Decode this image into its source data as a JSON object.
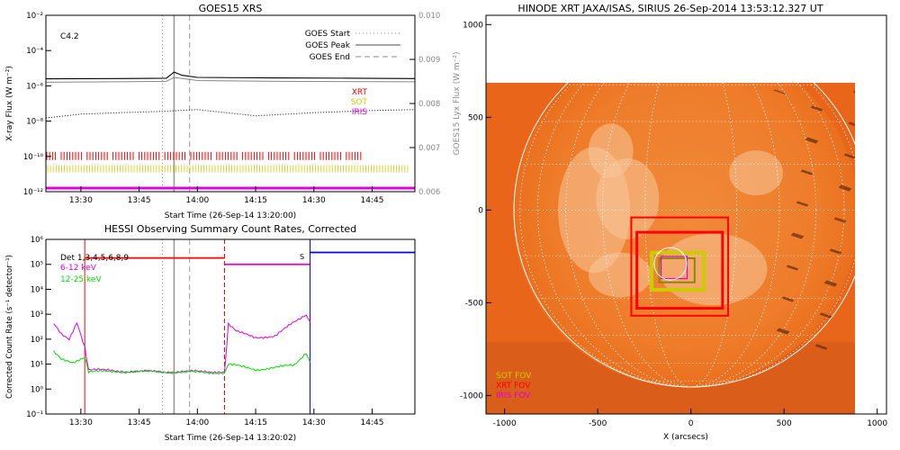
{
  "chart_data": [
    {
      "type": "line",
      "title": "GOES15 XRS",
      "xlabel": "Start Time (26-Sep-14 13:20:00)",
      "ylabel": "X-ray Flux (W m⁻²)",
      "ylabel_right": "GOES15 Lyx Flux (W m⁻²)",
      "flare_class": "C4.2",
      "x_ticks": [
        "13:30",
        "13:45",
        "14:00",
        "14:15",
        "14:30",
        "14:45"
      ],
      "x_range": [
        "13:21",
        "14:56"
      ],
      "y_scale": "log",
      "ylim": [
        "1e-12",
        "1e-2"
      ],
      "y_ticks": [
        "10⁻¹²",
        "10⁻¹⁰",
        "10⁻⁸",
        "10⁻⁶",
        "10⁻⁴",
        "10⁻²"
      ],
      "y2_ticks": [
        "0.006",
        "0.007",
        "0.008",
        "0.009",
        "0.010"
      ],
      "ylim_right": [
        0.006,
        0.01
      ],
      "legend": [
        "GOES Start",
        "GOES Peak",
        "GOES End"
      ],
      "legend_placement": "top-right",
      "instruments": [
        "XRT",
        "SOT",
        "IRIS"
      ],
      "goes_start": "13:51",
      "goes_peak": "13:54",
      "goes_end": "13:58",
      "series": [
        {
          "name": "",
          "style": "solid black",
          "x": [
            "13:21",
            "13:40",
            "13:52",
            "13:54",
            "13:56",
            "14:00",
            "14:20",
            "14:40",
            "14:56"
          ],
          "y": [
            "2.5e-6",
            "2.6e-6",
            "2.7e-6",
            "6e-6",
            "4e-6",
            "3e-6",
            "2.8e-6",
            "2.7e-6",
            "2.6e-6"
          ]
        },
        {
          "name": "",
          "style": "solid gray",
          "x": [
            "13:21",
            "13:40",
            "13:52",
            "13:54",
            "14:00",
            "14:20",
            "14:56"
          ],
          "y": [
            "1.6e-6",
            "1.7e-6",
            "1.8e-6",
            "3e-6",
            "2e-6",
            "1.8e-6",
            "1.7e-6"
          ]
        },
        {
          "name": "",
          "style": "dotted black",
          "x": [
            "13:21",
            "13:30",
            "13:40",
            "13:50",
            "14:00",
            "14:15",
            "14:30",
            "14:45",
            "14:56"
          ],
          "y": [
            "1.5e-8",
            "2.5e-8",
            "3e-8",
            "3.5e-8",
            "4.5e-8",
            "2e-8",
            "3e-8",
            "4e-8",
            "4.5e-8"
          ]
        }
      ]
    },
    {
      "type": "line",
      "title": "HESSI Observing Summary Count Rates, Corrected",
      "xlabel": "Start Time (26-Sep-14 13:20:02)",
      "ylabel": "Corrected Count Rate (s⁻¹ detector⁻¹)",
      "x_ticks": [
        "13:30",
        "13:45",
        "14:00",
        "14:15",
        "14:30",
        "14:45"
      ],
      "x_range": [
        "13:21",
        "14:56"
      ],
      "y_scale": "log",
      "ylim": [
        "1e-1",
        "1e6"
      ],
      "y_ticks": [
        "10⁻¹",
        "10⁰",
        "10¹",
        "10²",
        "10³",
        "10⁴",
        "10⁵",
        "10⁶"
      ],
      "legend_title": "Det 1,3,4,5,6,8,9",
      "s_marker": "S",
      "series": [
        {
          "name": "6-12 keV",
          "color": "#e000e0",
          "x": [
            "13:23",
            "13:25",
            "13:27",
            "13:29",
            "13:31",
            "13:32",
            "13:45",
            "14:07",
            "14:08",
            "14:10",
            "14:15",
            "14:20",
            "14:25",
            "14:28",
            "14:29"
          ],
          "y": [
            400,
            150,
            100,
            500,
            50,
            6,
            5,
            5,
            400,
            200,
            120,
            130,
            500,
            1000,
            500
          ]
        },
        {
          "name": "12-25 keV",
          "color": "#00e000",
          "x": [
            "13:23",
            "13:25",
            "13:28",
            "13:31",
            "13:32",
            "13:45",
            "14:07",
            "14:08",
            "14:15",
            "14:25",
            "14:28",
            "14:29"
          ],
          "y": [
            30,
            15,
            12,
            20,
            5,
            5,
            4.5,
            10,
            6,
            9,
            30,
            12
          ]
        }
      ],
      "states": [
        {
          "color": "#ff0000",
          "from": "13:31",
          "to": "14:07",
          "level": 180000
        },
        {
          "color": "#e000e0",
          "from": "14:07",
          "to": "14:29",
          "level": 100000
        },
        {
          "color": "#0000ff",
          "from": "14:29",
          "to": "14:56",
          "level": 300000
        }
      ],
      "markers": {
        "goes_start": "13:51",
        "goes_peak": "13:54",
        "goes_end": "13:58"
      }
    },
    {
      "type": "image",
      "title": "HINODE XRT JAXA/ISAS, SIRIUS 26-Sep-2014 13:53:12.327 UT",
      "xlabel": "X (arcsecs)",
      "x_ticks": [
        -1000,
        -500,
        0,
        500,
        1000
      ],
      "y_ticks": [
        1000,
        500,
        0,
        -500,
        -1000
      ],
      "xlim": [
        -1100,
        1050
      ],
      "ylim": [
        -1100,
        1050
      ],
      "solar_radius_arcsec": 950,
      "xrt_fov": {
        "x": [
          -1100,
          940
        ],
        "y": [
          -1100,
          730
        ]
      },
      "legend": [
        {
          "name": "SOT FOV",
          "color": "#cccc00"
        },
        {
          "name": "XRT FOV",
          "color": "#ff0000"
        },
        {
          "name": "IRIS FOV",
          "color": "#e000e0"
        }
      ]
    }
  ]
}
